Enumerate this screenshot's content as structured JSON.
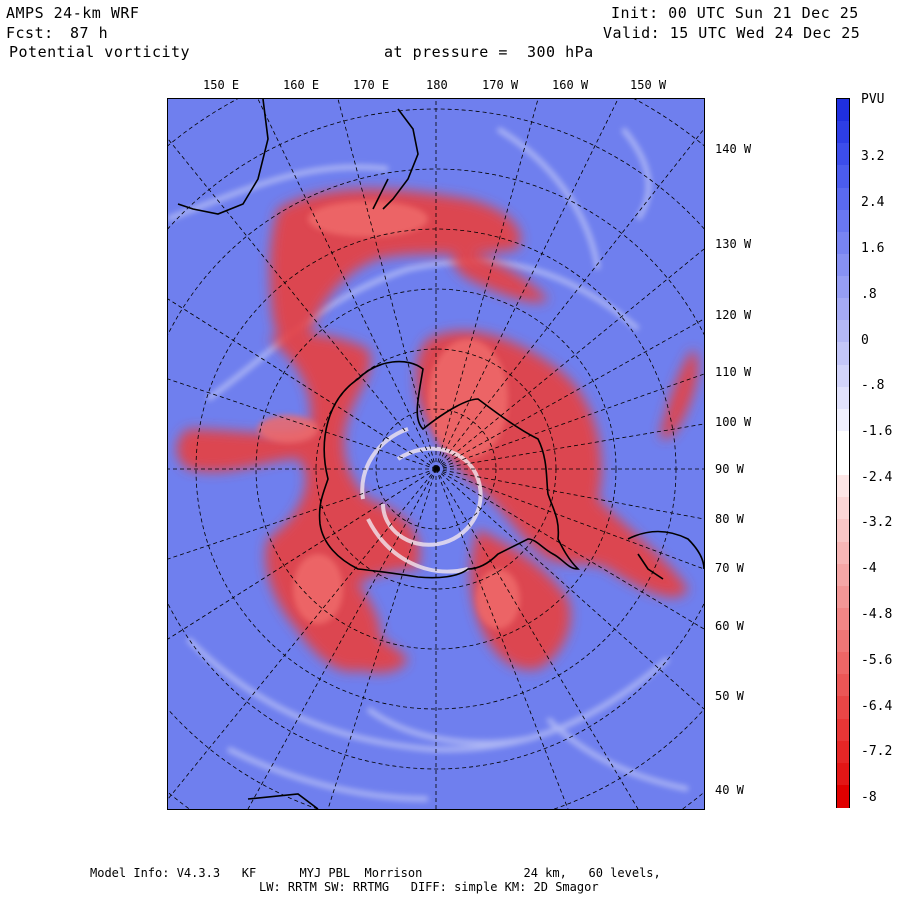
{
  "header": {
    "model": "AMPS 24-km WRF",
    "init": "Init: 00 UTC Sun 21 Dec 25",
    "fcst_label": "Fcst:",
    "fcst_value": "87 h",
    "valid": "Valid: 15 UTC Wed 24 Dec 25",
    "field": "Potential vorticity",
    "level": "at pressure =  300 hPa"
  },
  "map": {
    "top_lon_labels": [
      "150 E",
      "160 E",
      "170 E",
      "180",
      "170 W",
      "160 W",
      "150 W"
    ],
    "right_lat_labels": [
      "140 W",
      "130 W",
      "120 W",
      "110 W",
      "100 W",
      "90 W",
      "80 W",
      "70 W",
      "60 W",
      "50 W",
      "40 W"
    ]
  },
  "colorbar": {
    "unit": "PVU",
    "labels": [
      "3.2",
      "2.4",
      "1.6",
      ".8",
      "0",
      "-.8",
      "-1.6",
      "-2.4",
      "-3.2",
      "-4",
      "-4.8",
      "-5.6",
      "-6.4",
      "-7.2",
      "-8"
    ],
    "colors": [
      "#1f2fe0",
      "#2d3ee6",
      "#3c4deb",
      "#4b5cee",
      "#5a6af0",
      "#6977f1",
      "#7884f2",
      "#8791f3",
      "#969ef4",
      "#a5abf5",
      "#b4b8f6",
      "#c3c6f8",
      "#d2d4fa",
      "#e1e2fc",
      "#f0f0fe",
      "#ffffff",
      "#ffffff",
      "#fde6e6",
      "#fbd6d6",
      "#f9c6c6",
      "#f7b6b6",
      "#f5a6a6",
      "#f39696",
      "#f18686",
      "#ef7676",
      "#ed6666",
      "#eb5656",
      "#e94646",
      "#e73636",
      "#e52626",
      "#e31616",
      "#e00000"
    ]
  },
  "footer": {
    "line1": "Model Info: V4.3.3   KF      MYJ PBL  Morrison              24 km,   60 levels,",
    "line2": "LW: RRTM SW: RRTMG   DIFF: simple KM: 2D Smagor"
  }
}
